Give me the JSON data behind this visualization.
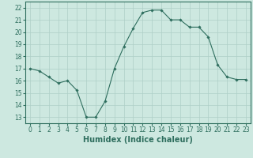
{
  "x": [
    0,
    1,
    2,
    3,
    4,
    5,
    6,
    7,
    8,
    9,
    10,
    11,
    12,
    13,
    14,
    15,
    16,
    17,
    18,
    19,
    20,
    21,
    22,
    23
  ],
  "y": [
    17.0,
    16.8,
    16.3,
    15.8,
    16.0,
    15.2,
    13.0,
    13.0,
    14.3,
    17.0,
    18.8,
    20.3,
    21.6,
    21.8,
    21.8,
    21.0,
    21.0,
    20.4,
    20.4,
    19.6,
    17.3,
    16.3,
    16.1,
    16.1
  ],
  "xlabel": "Humidex (Indice chaleur)",
  "xlim": [
    -0.5,
    23.5
  ],
  "ylim": [
    12.5,
    22.5
  ],
  "yticks": [
    13,
    14,
    15,
    16,
    17,
    18,
    19,
    20,
    21,
    22
  ],
  "xticks": [
    0,
    1,
    2,
    3,
    4,
    5,
    6,
    7,
    8,
    9,
    10,
    11,
    12,
    13,
    14,
    15,
    16,
    17,
    18,
    19,
    20,
    21,
    22,
    23
  ],
  "line_color": "#2e6e5e",
  "marker": "D",
  "marker_size": 1.8,
  "line_width": 0.8,
  "bg_color": "#cde8e0",
  "grid_color": "#aecfc7",
  "tick_label_fontsize": 5.5,
  "xlabel_fontsize": 7.0
}
